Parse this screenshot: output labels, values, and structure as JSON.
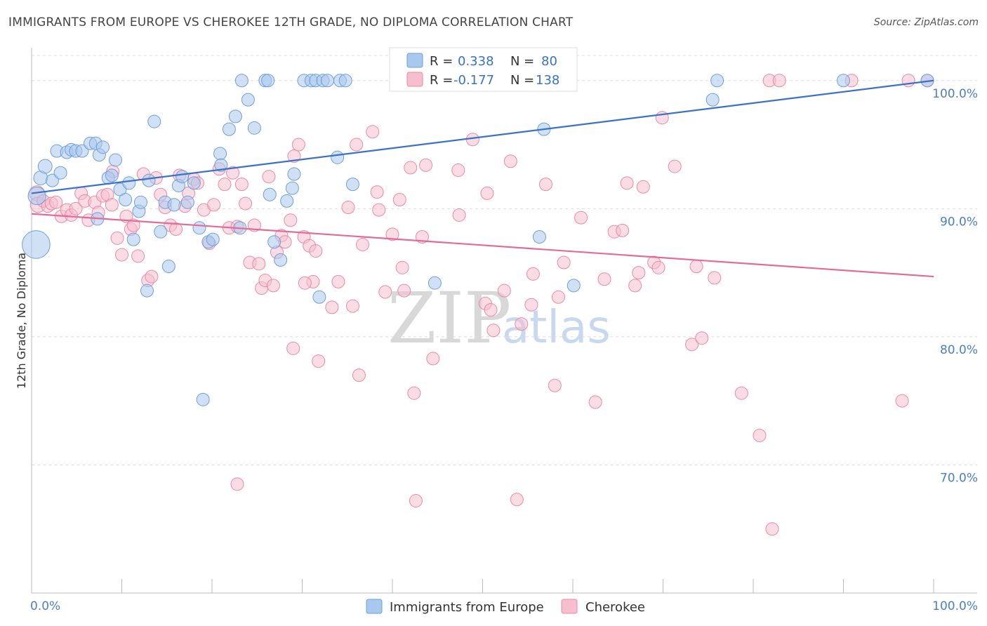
{
  "title": "IMMIGRANTS FROM EUROPE VS CHEROKEE 12TH GRADE, NO DIPLOMA CORRELATION CHART",
  "source": "Source: ZipAtlas.com",
  "watermark": {
    "zip": "ZIP",
    "atlas": "atlas"
  },
  "legend": {
    "r_label": "R =",
    "n_label": "N =",
    "europe": {
      "r": "0.338",
      "n": "80"
    },
    "cherokee": {
      "r": "-0.177",
      "n": "138"
    }
  },
  "bottom_legend": {
    "europe": "Immigrants from Europe",
    "cherokee": "Cherokee"
  },
  "colors": {
    "europe_fill": "#a9c8ee",
    "europe_stroke": "#6e9fd8",
    "europe_line": "#3a72c4",
    "cherokee_fill": "#f6bfd0",
    "cherokee_stroke": "#e98aa8",
    "cherokee_line": "#e26c98",
    "tick_label": "#4a7fc8",
    "grid": "#dddddd"
  },
  "chart_data": {
    "type": "scatter",
    "title": "IMMIGRANTS FROM EUROPE VS CHEROKEE 12TH GRADE, NO DIPLOMA CORRELATION CHART",
    "xlabel": "",
    "ylabel": "12th Grade, No Diploma",
    "xlim": [
      0,
      100
    ],
    "ylim": [
      60,
      103
    ],
    "x_tick_labels": [
      "0.0%",
      "100.0%"
    ],
    "y_ticks": [
      70,
      80,
      90,
      100
    ],
    "y_tick_labels": [
      "70.0%",
      "80.0%",
      "90.0%",
      "100.0%"
    ],
    "grid": "horizontal dashed",
    "legend_position": "top-center",
    "series": [
      {
        "name": "Immigrants from Europe",
        "trend": [
          [
            0,
            91.2
          ],
          [
            100,
            100.0
          ]
        ],
        "points": [
          [
            0.5,
            87.2,
            22
          ],
          [
            0.6,
            91.0,
            14
          ],
          [
            1.0,
            92.4,
            11
          ],
          [
            1.5,
            93.3,
            11
          ],
          [
            2.3,
            92.2,
            10
          ],
          [
            2.8,
            94.5,
            10
          ],
          [
            3.2,
            92.8,
            10
          ],
          [
            3.9,
            94.4,
            10
          ],
          [
            4.4,
            94.6,
            10
          ],
          [
            4.9,
            94.5,
            10
          ],
          [
            5.6,
            94.5,
            10
          ],
          [
            6.5,
            95.1,
            10
          ],
          [
            7.1,
            95.1,
            10
          ],
          [
            7.3,
            89.2,
            10
          ],
          [
            7.5,
            94.2,
            10
          ],
          [
            7.9,
            94.8,
            10
          ],
          [
            8.5,
            92.4,
            10
          ],
          [
            8.9,
            92.6,
            10
          ],
          [
            9.3,
            93.8,
            10
          ],
          [
            9.8,
            91.5,
            10
          ],
          [
            10.4,
            90.7,
            10
          ],
          [
            10.8,
            92.0,
            10
          ],
          [
            11.3,
            87.6,
            10
          ],
          [
            11.9,
            89.8,
            10
          ],
          [
            12.1,
            90.5,
            10
          ],
          [
            12.8,
            83.6,
            10
          ],
          [
            13.0,
            92.2,
            10
          ],
          [
            13.6,
            96.8,
            10
          ],
          [
            14.3,
            88.2,
            10
          ],
          [
            14.8,
            90.5,
            10
          ],
          [
            15.2,
            85.5,
            10
          ],
          [
            15.8,
            90.3,
            10
          ],
          [
            16.3,
            91.8,
            10
          ],
          [
            16.7,
            92.5,
            10
          ],
          [
            17.3,
            90.5,
            10
          ],
          [
            18.0,
            92.0,
            10
          ],
          [
            18.6,
            88.5,
            10
          ],
          [
            19.0,
            75.1,
            10
          ],
          [
            19.6,
            87.4,
            10
          ],
          [
            20.1,
            87.6,
            10
          ],
          [
            20.9,
            94.3,
            10
          ],
          [
            21.0,
            93.4,
            10
          ],
          [
            21.9,
            96.2,
            10
          ],
          [
            22.6,
            97.2,
            10
          ],
          [
            23.1,
            88.5,
            10
          ],
          [
            23.3,
            100,
            10
          ],
          [
            24.0,
            98.5,
            10
          ],
          [
            24.7,
            96.3,
            10
          ],
          [
            25.9,
            100,
            10
          ],
          [
            26.2,
            100,
            10
          ],
          [
            26.4,
            91.1,
            10
          ],
          [
            26.9,
            87.4,
            10
          ],
          [
            27.6,
            86.0,
            10
          ],
          [
            28.3,
            90.6,
            10
          ],
          [
            28.9,
            91.6,
            10
          ],
          [
            29.1,
            92.7,
            10
          ],
          [
            30.2,
            100,
            10
          ],
          [
            31.0,
            100,
            10
          ],
          [
            31.5,
            100,
            10
          ],
          [
            31.9,
            83.1,
            10
          ],
          [
            32.3,
            100,
            10
          ],
          [
            32.8,
            100,
            10
          ],
          [
            33.9,
            94.0,
            10
          ],
          [
            34.2,
            100,
            10
          ],
          [
            34.8,
            100,
            10
          ],
          [
            35.6,
            91.9,
            10
          ],
          [
            44.7,
            84.2,
            10
          ],
          [
            56.3,
            87.8,
            10
          ],
          [
            56.8,
            96.2,
            10
          ],
          [
            60.1,
            84.0,
            10
          ],
          [
            75.5,
            98.5,
            10
          ],
          [
            76.0,
            100,
            10
          ],
          [
            90.0,
            100,
            10
          ],
          [
            99.3,
            100,
            10
          ]
        ]
      },
      {
        "name": "Cherokee",
        "trend": [
          [
            0,
            89.6
          ],
          [
            100,
            84.7
          ]
        ],
        "points": [
          [
            0.6,
            91.2,
            12
          ],
          [
            0.7,
            90.3,
            12
          ],
          [
            1.3,
            90.6,
            10
          ],
          [
            1.8,
            90.2,
            10
          ],
          [
            2.2,
            90.4,
            10
          ],
          [
            2.7,
            90.5,
            10
          ],
          [
            3.3,
            89.4,
            10
          ],
          [
            3.9,
            89.9,
            10
          ],
          [
            4.4,
            89.5,
            10
          ],
          [
            4.9,
            90.0,
            10
          ],
          [
            5.5,
            91.2,
            10
          ],
          [
            5.9,
            90.6,
            10
          ],
          [
            6.3,
            89.1,
            10
          ],
          [
            7.0,
            90.5,
            10
          ],
          [
            7.4,
            89.7,
            10
          ],
          [
            7.9,
            91.0,
            10
          ],
          [
            8.4,
            91.1,
            10
          ],
          [
            8.9,
            90.3,
            10
          ],
          [
            9.0,
            92.9,
            10
          ],
          [
            9.5,
            87.7,
            10
          ],
          [
            10.0,
            86.4,
            10
          ],
          [
            10.5,
            89.4,
            10
          ],
          [
            11.0,
            88.4,
            10
          ],
          [
            11.3,
            88.7,
            10
          ],
          [
            11.8,
            86.3,
            10
          ],
          [
            12.4,
            92.7,
            10
          ],
          [
            12.9,
            84.4,
            10
          ],
          [
            13.3,
            84.7,
            10
          ],
          [
            13.8,
            92.4,
            10
          ],
          [
            14.3,
            91.1,
            10
          ],
          [
            14.8,
            90.1,
            10
          ],
          [
            15.4,
            88.7,
            10
          ],
          [
            16.0,
            88.4,
            10
          ],
          [
            16.4,
            92.6,
            10
          ],
          [
            17.0,
            90.2,
            10
          ],
          [
            17.4,
            91.2,
            10
          ],
          [
            18.0,
            92.3,
            10
          ],
          [
            18.4,
            92.0,
            10
          ],
          [
            19.1,
            89.9,
            10
          ],
          [
            19.7,
            87.3,
            10
          ],
          [
            20.2,
            90.3,
            10
          ],
          [
            20.8,
            93.1,
            10
          ],
          [
            21.4,
            91.9,
            10
          ],
          [
            21.9,
            88.5,
            10
          ],
          [
            22.3,
            92.8,
            10
          ],
          [
            22.8,
            88.6,
            10
          ],
          [
            23.3,
            91.9,
            10
          ],
          [
            23.7,
            90.4,
            10
          ],
          [
            24.2,
            85.8,
            10
          ],
          [
            24.7,
            88.7,
            10
          ],
          [
            25.2,
            85.7,
            10
          ],
          [
            25.5,
            83.8,
            10
          ],
          [
            25.9,
            84.4,
            10
          ],
          [
            26.3,
            92.5,
            10
          ],
          [
            26.8,
            84.0,
            10
          ],
          [
            27.2,
            86.6,
            10
          ],
          [
            27.7,
            87.9,
            10
          ],
          [
            28.1,
            87.4,
            10
          ],
          [
            28.7,
            89.1,
            10
          ],
          [
            29.1,
            94.1,
            10
          ],
          [
            29.6,
            95.0,
            10
          ],
          [
            30.2,
            87.8,
            10
          ],
          [
            30.8,
            87.1,
            10
          ],
          [
            31.2,
            84.3,
            10
          ],
          [
            31.5,
            86.7,
            10
          ],
          [
            31.8,
            78.1,
            10
          ],
          [
            33.3,
            82.3,
            10
          ],
          [
            34.0,
            84.3,
            10
          ],
          [
            35.1,
            90.1,
            10
          ],
          [
            35.6,
            82.4,
            10
          ],
          [
            36.0,
            95.0,
            10
          ],
          [
            36.3,
            77.0,
            10
          ],
          [
            36.7,
            87.2,
            10
          ],
          [
            37.8,
            96.0,
            10
          ],
          [
            38.3,
            91.3,
            10
          ],
          [
            38.5,
            89.9,
            10
          ],
          [
            39.2,
            83.5,
            10
          ],
          [
            40.0,
            88.0,
            10
          ],
          [
            40.8,
            90.7,
            10
          ],
          [
            41.1,
            85.4,
            10
          ],
          [
            41.3,
            83.6,
            10
          ],
          [
            42.0,
            93.2,
            10
          ],
          [
            42.4,
            75.6,
            10
          ],
          [
            42.6,
            67.2,
            10
          ],
          [
            43.3,
            87.8,
            10
          ],
          [
            43.7,
            93.4,
            10
          ],
          [
            44.5,
            78.3,
            10
          ],
          [
            47.3,
            93.0,
            10
          ],
          [
            47.4,
            89.5,
            10
          ],
          [
            48.9,
            95.4,
            10
          ],
          [
            50.3,
            82.6,
            10
          ],
          [
            50.5,
            91.2,
            10
          ],
          [
            50.9,
            82.1,
            10
          ],
          [
            51.2,
            80.5,
            10
          ],
          [
            52.4,
            83.6,
            10
          ],
          [
            53.1,
            93.7,
            10
          ],
          [
            53.8,
            67.3,
            10
          ],
          [
            54.3,
            81.0,
            10
          ],
          [
            55.4,
            82.5,
            10
          ],
          [
            55.6,
            84.9,
            10
          ],
          [
            57.0,
            91.9,
            10
          ],
          [
            58.0,
            76.2,
            10
          ],
          [
            58.4,
            83.1,
            10
          ],
          [
            59.0,
            85.8,
            10
          ],
          [
            60.9,
            89.3,
            10
          ],
          [
            62.5,
            74.9,
            10
          ],
          [
            63.5,
            84.5,
            10
          ],
          [
            64.6,
            88.2,
            10
          ],
          [
            65.5,
            88.3,
            10
          ],
          [
            66.0,
            92.0,
            10
          ],
          [
            66.9,
            84.0,
            10
          ],
          [
            67.3,
            85.0,
            10
          ],
          [
            67.8,
            91.7,
            10
          ],
          [
            69.0,
            85.8,
            10
          ],
          [
            69.5,
            85.4,
            10
          ],
          [
            69.9,
            97.1,
            10
          ],
          [
            71.3,
            93.3,
            10
          ],
          [
            73.2,
            79.4,
            10
          ],
          [
            73.7,
            85.5,
            10
          ],
          [
            74.3,
            79.9,
            10
          ],
          [
            75.7,
            84.6,
            10
          ],
          [
            78.7,
            75.6,
            10
          ],
          [
            80.7,
            72.3,
            10
          ],
          [
            81.8,
            100,
            10
          ],
          [
            82.9,
            100,
            10
          ],
          [
            82.1,
            65.0,
            10
          ],
          [
            90.9,
            100,
            10
          ],
          [
            96.5,
            75.0,
            10
          ],
          [
            97.2,
            100,
            10
          ],
          [
            99.3,
            100,
            10
          ],
          [
            22.8,
            68.5,
            10
          ],
          [
            29.0,
            79.1,
            10
          ],
          [
            30.3,
            84.2,
            10
          ]
        ]
      }
    ]
  }
}
